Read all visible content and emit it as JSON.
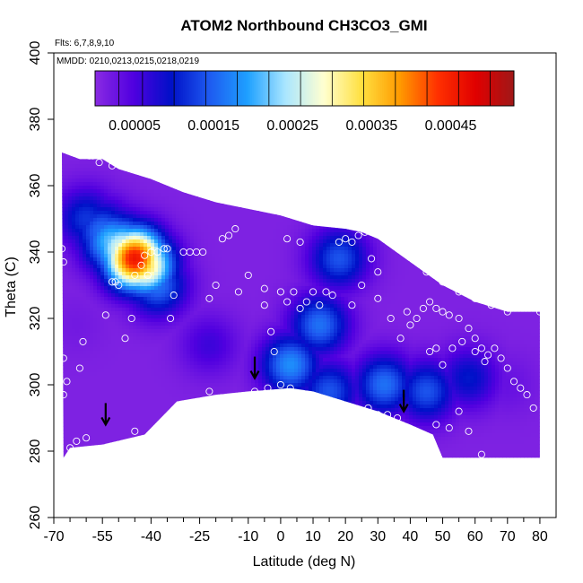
{
  "chart_data": {
    "type": "heatmap",
    "title": "ATOM2 Northbound CH3CO3_GMI",
    "flights_note": "Flts: 6,7,8,9,10",
    "dates_note": "MMDD: 0210,0213,0215,0218,0219",
    "xlabel": "Latitude (deg N)",
    "ylabel": "Theta (C)",
    "xlim": [
      -70,
      85
    ],
    "ylim": [
      260,
      400
    ],
    "x_ticks": [
      -70,
      -55,
      -40,
      -25,
      -10,
      0,
      10,
      20,
      30,
      40,
      50,
      60,
      70,
      80
    ],
    "x_tick_labels": [
      "-70",
      "-55",
      "-40",
      "-25",
      "-10",
      "0",
      "10",
      "20",
      "30",
      "40",
      "50",
      "60",
      "70",
      "80"
    ],
    "x_minor_ticks": [
      -65,
      -60,
      -50,
      -45,
      -35,
      -30,
      -20,
      -15,
      -5,
      5,
      15,
      25,
      35,
      45,
      55,
      65,
      75
    ],
    "y_ticks": [
      260,
      280,
      300,
      320,
      340,
      360,
      380,
      400
    ],
    "y_tick_labels": [
      "260",
      "280",
      "300",
      "320",
      "340",
      "360",
      "380",
      "400"
    ],
    "colorbar": {
      "min": 0.0,
      "max": 0.00053,
      "tick_values": [
        5e-05,
        0.00015,
        0.00025,
        0.00035,
        0.00045
      ],
      "tick_labels": [
        "0.00005",
        "0.00015",
        "0.00025",
        "0.00035",
        "0.00045"
      ],
      "divisions": [
        3e-05,
        6e-05,
        0.0001,
        0.00014,
        0.00018,
        0.00022,
        0.00026,
        0.0003,
        0.00034,
        0.00038,
        0.00042,
        0.00046,
        0.0005
      ],
      "color_stops": [
        "#8a2be2",
        "#5000e0",
        "#0010c8",
        "#1e5af0",
        "#1ea0ff",
        "#aae6ff",
        "#ffffd0",
        "#ffe040",
        "#ff9a00",
        "#ff3000",
        "#e00000",
        "#a01818"
      ]
    },
    "domain_top": [
      [
        -67.5,
        370
      ],
      [
        -62,
        368
      ],
      [
        -55,
        368
      ],
      [
        -50,
        365
      ],
      [
        -40,
        362
      ],
      [
        -30,
        358
      ],
      [
        -20,
        355
      ],
      [
        -10,
        353
      ],
      [
        0,
        351
      ],
      [
        10,
        348
      ],
      [
        20,
        347
      ],
      [
        25,
        346
      ],
      [
        30,
        344
      ],
      [
        40,
        337
      ],
      [
        50,
        330
      ],
      [
        60,
        325
      ],
      [
        70,
        322
      ],
      [
        80,
        322
      ]
    ],
    "domain_bottom": [
      [
        80,
        278
      ],
      [
        70,
        278
      ],
      [
        60,
        278
      ],
      [
        50,
        278
      ],
      [
        47,
        285
      ],
      [
        40,
        288
      ],
      [
        30,
        292
      ],
      [
        20,
        295
      ],
      [
        10,
        298
      ],
      [
        3,
        299
      ],
      [
        -10,
        298
      ],
      [
        -20,
        297
      ],
      [
        -32,
        295
      ],
      [
        -42,
        285
      ],
      [
        -55,
        282
      ],
      [
        -65,
        281
      ],
      [
        -67,
        278
      ]
    ],
    "field": [
      {
        "lat": -45,
        "theta": 338,
        "value": 0.00046
      },
      {
        "lat": -42,
        "theta": 336,
        "value": 0.00034
      },
      {
        "lat": -49,
        "theta": 341,
        "value": 0.00028
      },
      {
        "lat": -52,
        "theta": 343,
        "value": 0.00022
      },
      {
        "lat": -55,
        "theta": 346,
        "value": 0.00016
      },
      {
        "lat": -38,
        "theta": 330,
        "value": 0.00016
      },
      {
        "lat": -60,
        "theta": 350,
        "value": 0.00012
      },
      {
        "lat": 3,
        "theta": 306,
        "value": 0.00018
      },
      {
        "lat": 12,
        "theta": 318,
        "value": 0.00016
      },
      {
        "lat": 18,
        "theta": 338,
        "value": 0.00014
      },
      {
        "lat": 15,
        "theta": 298,
        "value": 0.00014
      },
      {
        "lat": 32,
        "theta": 300,
        "value": 0.00016
      },
      {
        "lat": 45,
        "theta": 298,
        "value": 0.00014
      },
      {
        "lat": 58,
        "theta": 302,
        "value": 0.0001
      },
      {
        "lat": -22,
        "theta": 312,
        "value": 6e-05
      },
      {
        "lat": -63,
        "theta": 318,
        "value": 2e-05
      },
      {
        "lat": 70,
        "theta": 300,
        "value": 3e-05
      }
    ],
    "sample_points": [
      [
        -67.5,
        341
      ],
      [
        -67,
        337
      ],
      [
        -67,
        308
      ],
      [
        -67,
        297
      ],
      [
        -66,
        301
      ],
      [
        -65,
        281
      ],
      [
        -62,
        305
      ],
      [
        -61,
        313
      ],
      [
        -60,
        284
      ],
      [
        -63,
        283
      ],
      [
        -59,
        369
      ],
      [
        -58,
        369
      ],
      [
        -56,
        367
      ],
      [
        -52,
        366
      ],
      [
        -52,
        331
      ],
      [
        -51,
        331
      ],
      [
        -50,
        330
      ],
      [
        -54,
        321
      ],
      [
        -48,
        314
      ],
      [
        -46,
        320
      ],
      [
        -45,
        333
      ],
      [
        -45,
        286
      ],
      [
        -43,
        336
      ],
      [
        -42,
        339
      ],
      [
        -41,
        333
      ],
      [
        -40,
        340
      ],
      [
        -38,
        340
      ],
      [
        -36,
        341
      ],
      [
        -35,
        341
      ],
      [
        -33,
        327
      ],
      [
        -34,
        320
      ],
      [
        -30,
        340
      ],
      [
        -28,
        340
      ],
      [
        -26,
        340
      ],
      [
        -24,
        340
      ],
      [
        -22,
        326
      ],
      [
        -20,
        330
      ],
      [
        -22,
        298
      ],
      [
        -18,
        344
      ],
      [
        -16,
        345
      ],
      [
        -14,
        347
      ],
      [
        -13,
        328
      ],
      [
        -10,
        333
      ],
      [
        -8,
        298
      ],
      [
        -5,
        329
      ],
      [
        -5,
        324
      ],
      [
        -3,
        316
      ],
      [
        -2,
        310
      ],
      [
        0,
        328
      ],
      [
        2,
        325
      ],
      [
        4,
        328
      ],
      [
        6,
        323
      ],
      [
        8,
        325
      ],
      [
        10,
        328
      ],
      [
        12,
        324
      ],
      [
        14,
        328
      ],
      [
        16,
        327
      ],
      [
        18,
        343
      ],
      [
        20,
        344
      ],
      [
        22,
        343
      ],
      [
        24,
        345
      ],
      [
        26,
        346
      ],
      [
        28,
        338
      ],
      [
        30,
        334
      ],
      [
        2,
        344
      ],
      [
        6,
        343
      ],
      [
        -4,
        299
      ],
      [
        0,
        300
      ],
      [
        3,
        299
      ],
      [
        6,
        296
      ],
      [
        9,
        295
      ],
      [
        12,
        294
      ],
      [
        15,
        293
      ],
      [
        18,
        292
      ],
      [
        21,
        292
      ],
      [
        24,
        292
      ],
      [
        27,
        293
      ],
      [
        30,
        291
      ],
      [
        33,
        291
      ],
      [
        36,
        290
      ],
      [
        39,
        322
      ],
      [
        42,
        320
      ],
      [
        44,
        323
      ],
      [
        46,
        325
      ],
      [
        48,
        323
      ],
      [
        50,
        322
      ],
      [
        52,
        321
      ],
      [
        55,
        320
      ],
      [
        58,
        317
      ],
      [
        60,
        314
      ],
      [
        62,
        311
      ],
      [
        64,
        309
      ],
      [
        66,
        311
      ],
      [
        68,
        308
      ],
      [
        70,
        305
      ],
      [
        72,
        301
      ],
      [
        74,
        299
      ],
      [
        76,
        297
      ],
      [
        78,
        293
      ],
      [
        80,
        322
      ],
      [
        40,
        339
      ],
      [
        45,
        334
      ],
      [
        50,
        331
      ],
      [
        55,
        328
      ],
      [
        60,
        326
      ],
      [
        65,
        324
      ],
      [
        70,
        322
      ],
      [
        48,
        288
      ],
      [
        52,
        287
      ],
      [
        55,
        292
      ],
      [
        58,
        286
      ],
      [
        62,
        279
      ],
      [
        46,
        310
      ],
      [
        48,
        311
      ],
      [
        50,
        306
      ],
      [
        53,
        311
      ],
      [
        56,
        313
      ],
      [
        60,
        310
      ],
      [
        63,
        307
      ],
      [
        37,
        314
      ],
      [
        40,
        318
      ],
      [
        34,
        320
      ],
      [
        30,
        326
      ],
      [
        25,
        330
      ],
      [
        22,
        324
      ]
    ],
    "arrows": [
      [
        -54,
        288
      ],
      [
        -8,
        302
      ],
      [
        38,
        292
      ]
    ]
  }
}
